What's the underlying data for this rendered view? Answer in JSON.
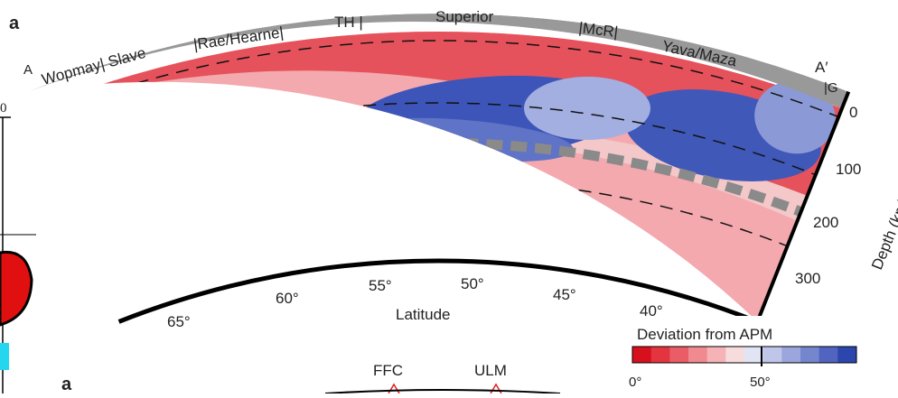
{
  "panel_label": "a",
  "left_fragment": "0",
  "profile_start": "A",
  "profile_end": "A′",
  "end_label": "|G",
  "provinces": [
    "Wopmay| Slave",
    "|Rae/Hearne|",
    "TH |",
    "Superior",
    "|McR|",
    "Yava/Maza"
  ],
  "depth_axis": {
    "title": "Depth (km)",
    "ticks": [
      "0",
      "100",
      "200",
      "300"
    ]
  },
  "latitude_axis": {
    "title": "Latitude",
    "ticks": [
      "65°",
      "60°",
      "55°",
      "50°",
      "45°",
      "40°"
    ]
  },
  "colorbar": {
    "title": "Deviation from APM",
    "ticks": [
      "0°",
      "50°"
    ]
  },
  "lower_figure": {
    "panel_label": "a",
    "labels": [
      "FFC",
      "ULM"
    ]
  }
}
